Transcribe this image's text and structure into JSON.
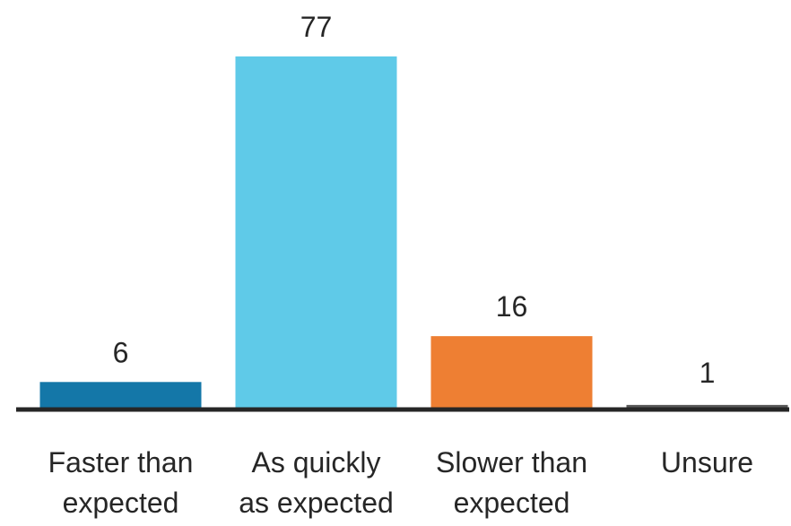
{
  "chart_data": {
    "type": "bar",
    "categories": [
      [
        "Faster than",
        "expected"
      ],
      [
        "As quickly",
        "as expected"
      ],
      [
        "Slower than",
        "expected"
      ],
      [
        "Unsure"
      ]
    ],
    "values": [
      6,
      77,
      16,
      1
    ],
    "value_labels": [
      "6",
      "77",
      "16",
      "1"
    ],
    "colors": [
      "#1477A8",
      "#5FCAE8",
      "#EE7F33",
      "#595959"
    ],
    "axis_color": "#262626",
    "ylim": [
      0,
      77
    ],
    "grid": false,
    "legend": "none"
  }
}
